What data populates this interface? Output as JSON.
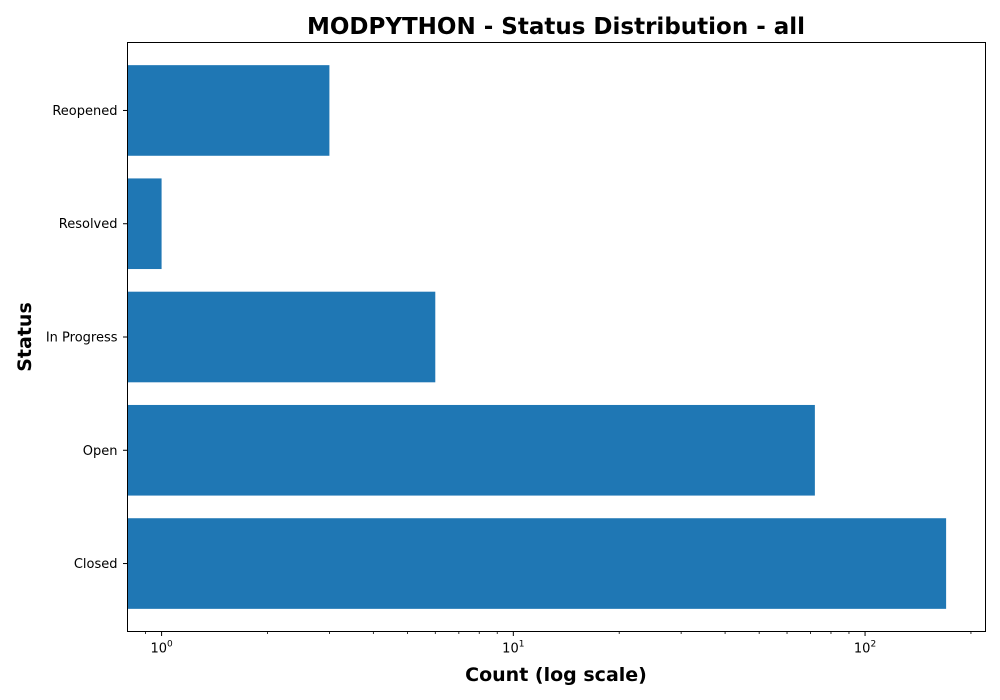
{
  "chart_data": {
    "type": "bar",
    "orientation": "horizontal",
    "title": "MODPYTHON - Status Distribution - all",
    "xlabel": "Count (log scale)",
    "ylabel": "Status",
    "x_scale": "log",
    "xlim": [
      0.8,
      220
    ],
    "categories": [
      "Closed",
      "Open",
      "In Progress",
      "Resolved",
      "Reopened"
    ],
    "values": [
      170,
      72,
      6,
      1,
      3
    ],
    "x_ticks": [
      {
        "value": 1,
        "base": "10",
        "exp": "0"
      },
      {
        "value": 10,
        "base": "10",
        "exp": "1"
      },
      {
        "value": 100,
        "base": "10",
        "exp": "2"
      }
    ],
    "bar_color": "#1f77b4",
    "grid": false,
    "legend": "none"
  }
}
